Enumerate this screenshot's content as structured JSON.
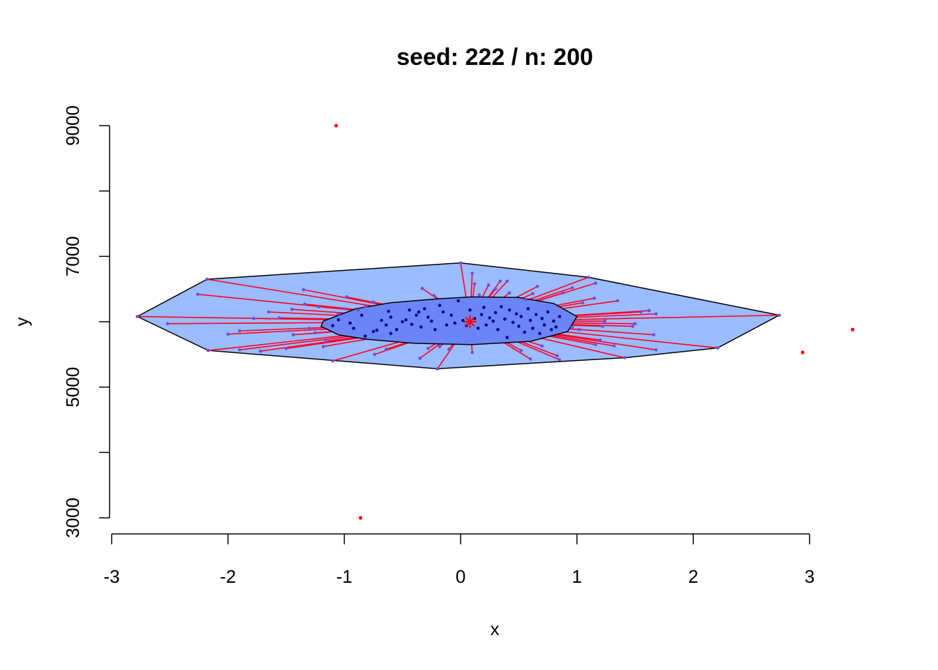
{
  "chart_data": {
    "type": "scatter",
    "title": "seed:  222 / n:  200",
    "xlabel": "x",
    "ylabel": "y",
    "xlim": [
      -3,
      3
    ],
    "ylim": [
      3000,
      9000
    ],
    "x_ticks": [
      "-3",
      "-2",
      "-1",
      "0",
      "1",
      "2",
      "3"
    ],
    "y_ticks": [
      "3000",
      "5000",
      "7000",
      "9000"
    ],
    "y_minor_ticks": [
      4000,
      6000,
      8000
    ],
    "grid": false,
    "colors": {
      "bag_fill": "#9bbcff",
      "loop_fill": "#6b85f7",
      "whisker": "#ff0022",
      "outlier": "#ff0000",
      "bag_point": "#00008b",
      "loop_point": "#6b4ee0",
      "median": "#ff0000"
    },
    "median": {
      "x": 0.08,
      "y": 6000
    },
    "loop_hull": [
      {
        "x": -2.78,
        "y": 6080
      },
      {
        "x": -2.18,
        "y": 6650
      },
      {
        "x": 0.0,
        "y": 6900
      },
      {
        "x": 1.1,
        "y": 6680
      },
      {
        "x": 2.74,
        "y": 6100
      },
      {
        "x": 2.21,
        "y": 5600
      },
      {
        "x": 1.42,
        "y": 5450
      },
      {
        "x": -0.2,
        "y": 5280
      },
      {
        "x": -2.17,
        "y": 5560
      }
    ],
    "bag_hull": [
      {
        "x": -1.2,
        "y": 5930
      },
      {
        "x": -1.18,
        "y": 6010
      },
      {
        "x": -0.9,
        "y": 6200
      },
      {
        "x": -0.6,
        "y": 6290
      },
      {
        "x": -0.2,
        "y": 6350
      },
      {
        "x": 0.1,
        "y": 6380
      },
      {
        "x": 0.5,
        "y": 6370
      },
      {
        "x": 0.8,
        "y": 6280
      },
      {
        "x": 1.0,
        "y": 6080
      },
      {
        "x": 0.92,
        "y": 5850
      },
      {
        "x": 0.6,
        "y": 5700
      },
      {
        "x": 0.1,
        "y": 5650
      },
      {
        "x": -0.4,
        "y": 5670
      },
      {
        "x": -0.8,
        "y": 5730
      },
      {
        "x": -1.05,
        "y": 5800
      }
    ],
    "outliers": [
      {
        "x": -1.07,
        "y": 9000
      },
      {
        "x": -0.86,
        "y": 3000
      },
      {
        "x": 2.94,
        "y": 5530
      },
      {
        "x": 3.37,
        "y": 5880
      }
    ],
    "loop_points": [
      {
        "x": -2.78,
        "y": 6080
      },
      {
        "x": -2.18,
        "y": 6650
      },
      {
        "x": -2.26,
        "y": 6420
      },
      {
        "x": -2.52,
        "y": 5970
      },
      {
        "x": -2.17,
        "y": 5560
      },
      {
        "x": -2.0,
        "y": 5810
      },
      {
        "x": -1.9,
        "y": 5860
      },
      {
        "x": -1.9,
        "y": 5570
      },
      {
        "x": -1.78,
        "y": 6050
      },
      {
        "x": -1.72,
        "y": 5550
      },
      {
        "x": -1.65,
        "y": 6150
      },
      {
        "x": -1.56,
        "y": 6060
      },
      {
        "x": -1.5,
        "y": 5590
      },
      {
        "x": -1.45,
        "y": 6190
      },
      {
        "x": -1.44,
        "y": 5800
      },
      {
        "x": -1.35,
        "y": 6490
      },
      {
        "x": -1.34,
        "y": 6270
      },
      {
        "x": -1.3,
        "y": 5900
      },
      {
        "x": -1.25,
        "y": 5830
      },
      {
        "x": -1.22,
        "y": 6230
      },
      {
        "x": -1.18,
        "y": 5620
      },
      {
        "x": -1.16,
        "y": 5700
      },
      {
        "x": -1.1,
        "y": 5400
      },
      {
        "x": -1.05,
        "y": 6120
      },
      {
        "x": -1.0,
        "y": 6200
      },
      {
        "x": -0.98,
        "y": 6380
      },
      {
        "x": -0.88,
        "y": 6180
      },
      {
        "x": -0.82,
        "y": 6230
      },
      {
        "x": -0.75,
        "y": 6300
      },
      {
        "x": -0.74,
        "y": 5500
      },
      {
        "x": -0.64,
        "y": 5580
      },
      {
        "x": -0.35,
        "y": 5440
      },
      {
        "x": -0.33,
        "y": 6510
      },
      {
        "x": -0.28,
        "y": 5590
      },
      {
        "x": -0.23,
        "y": 6400
      },
      {
        "x": -0.2,
        "y": 5280
      },
      {
        "x": -0.18,
        "y": 5620
      },
      {
        "x": -0.1,
        "y": 5580
      },
      {
        "x": 0.0,
        "y": 6900
      },
      {
        "x": 0.1,
        "y": 6740
      },
      {
        "x": 0.12,
        "y": 6580
      },
      {
        "x": 0.1,
        "y": 5530
      },
      {
        "x": 0.16,
        "y": 6410
      },
      {
        "x": 0.24,
        "y": 6560
      },
      {
        "x": 0.3,
        "y": 6500
      },
      {
        "x": 0.34,
        "y": 6620
      },
      {
        "x": 0.4,
        "y": 6620
      },
      {
        "x": 0.42,
        "y": 6440
      },
      {
        "x": 0.52,
        "y": 5560
      },
      {
        "x": 0.56,
        "y": 6340
      },
      {
        "x": 0.6,
        "y": 5430
      },
      {
        "x": 0.62,
        "y": 6430
      },
      {
        "x": 0.66,
        "y": 6540
      },
      {
        "x": 0.7,
        "y": 5630
      },
      {
        "x": 0.83,
        "y": 5480
      },
      {
        "x": 0.85,
        "y": 5420
      },
      {
        "x": 0.88,
        "y": 6440
      },
      {
        "x": 0.96,
        "y": 6520
      },
      {
        "x": 0.96,
        "y": 5920
      },
      {
        "x": 1.02,
        "y": 5880
      },
      {
        "x": 1.05,
        "y": 6290
      },
      {
        "x": 1.1,
        "y": 6680
      },
      {
        "x": 1.15,
        "y": 6360
      },
      {
        "x": 1.16,
        "y": 6590
      },
      {
        "x": 1.16,
        "y": 5650
      },
      {
        "x": 1.2,
        "y": 5720
      },
      {
        "x": 1.22,
        "y": 5930
      },
      {
        "x": 1.24,
        "y": 6010
      },
      {
        "x": 1.32,
        "y": 5630
      },
      {
        "x": 1.35,
        "y": 6320
      },
      {
        "x": 1.41,
        "y": 5450
      },
      {
        "x": 1.48,
        "y": 5930
      },
      {
        "x": 1.5,
        "y": 5970
      },
      {
        "x": 1.55,
        "y": 6150
      },
      {
        "x": 1.62,
        "y": 6170
      },
      {
        "x": 1.66,
        "y": 5800
      },
      {
        "x": 1.68,
        "y": 6120
      },
      {
        "x": 1.68,
        "y": 5570
      },
      {
        "x": 2.21,
        "y": 5600
      },
      {
        "x": 2.74,
        "y": 6100
      }
    ],
    "bag_points": [
      {
        "x": -1.1,
        "y": 5940
      },
      {
        "x": -1.05,
        "y": 6030
      },
      {
        "x": -0.95,
        "y": 5980
      },
      {
        "x": -0.92,
        "y": 5900
      },
      {
        "x": -0.85,
        "y": 6100
      },
      {
        "x": -0.82,
        "y": 5780
      },
      {
        "x": -0.75,
        "y": 5850
      },
      {
        "x": -0.72,
        "y": 5870
      },
      {
        "x": -0.68,
        "y": 6020
      },
      {
        "x": -0.64,
        "y": 5950
      },
      {
        "x": -0.62,
        "y": 6160
      },
      {
        "x": -0.6,
        "y": 6070
      },
      {
        "x": -0.6,
        "y": 5820
      },
      {
        "x": -0.55,
        "y": 5880
      },
      {
        "x": -0.5,
        "y": 6000
      },
      {
        "x": -0.47,
        "y": 6030
      },
      {
        "x": -0.44,
        "y": 6180
      },
      {
        "x": -0.42,
        "y": 5960
      },
      {
        "x": -0.38,
        "y": 6100
      },
      {
        "x": -0.36,
        "y": 6150
      },
      {
        "x": -0.34,
        "y": 5920
      },
      {
        "x": -0.31,
        "y": 6200
      },
      {
        "x": -0.28,
        "y": 6070
      },
      {
        "x": -0.25,
        "y": 6010
      },
      {
        "x": -0.22,
        "y": 5880
      },
      {
        "x": -0.18,
        "y": 6250
      },
      {
        "x": -0.15,
        "y": 6150
      },
      {
        "x": -0.12,
        "y": 5950
      },
      {
        "x": -0.08,
        "y": 6100
      },
      {
        "x": -0.05,
        "y": 5980
      },
      {
        "x": -0.02,
        "y": 6320
      },
      {
        "x": 0.02,
        "y": 6020
      },
      {
        "x": 0.05,
        "y": 5940
      },
      {
        "x": 0.08,
        "y": 6180
      },
      {
        "x": 0.12,
        "y": 6050
      },
      {
        "x": 0.15,
        "y": 5900
      },
      {
        "x": 0.18,
        "y": 6110
      },
      {
        "x": 0.2,
        "y": 6220
      },
      {
        "x": 0.22,
        "y": 5950
      },
      {
        "x": 0.25,
        "y": 6060
      },
      {
        "x": 0.28,
        "y": 6010
      },
      {
        "x": 0.3,
        "y": 6140
      },
      {
        "x": 0.32,
        "y": 5880
      },
      {
        "x": 0.35,
        "y": 6230
      },
      {
        "x": 0.38,
        "y": 6040
      },
      {
        "x": 0.4,
        "y": 5760
      },
      {
        "x": 0.42,
        "y": 6180
      },
      {
        "x": 0.45,
        "y": 5990
      },
      {
        "x": 0.48,
        "y": 6120
      },
      {
        "x": 0.5,
        "y": 5930
      },
      {
        "x": 0.52,
        "y": 6080
      },
      {
        "x": 0.55,
        "y": 5840
      },
      {
        "x": 0.58,
        "y": 6200
      },
      {
        "x": 0.6,
        "y": 6020
      },
      {
        "x": 0.62,
        "y": 5900
      },
      {
        "x": 0.65,
        "y": 6110
      },
      {
        "x": 0.68,
        "y": 5820
      },
      {
        "x": 0.7,
        "y": 6050
      },
      {
        "x": 0.72,
        "y": 5950
      },
      {
        "x": 0.75,
        "y": 6150
      },
      {
        "x": 0.78,
        "y": 5880
      },
      {
        "x": 0.8,
        "y": 6010
      },
      {
        "x": 0.82,
        "y": 5920
      },
      {
        "x": 0.85,
        "y": 6080
      }
    ]
  }
}
